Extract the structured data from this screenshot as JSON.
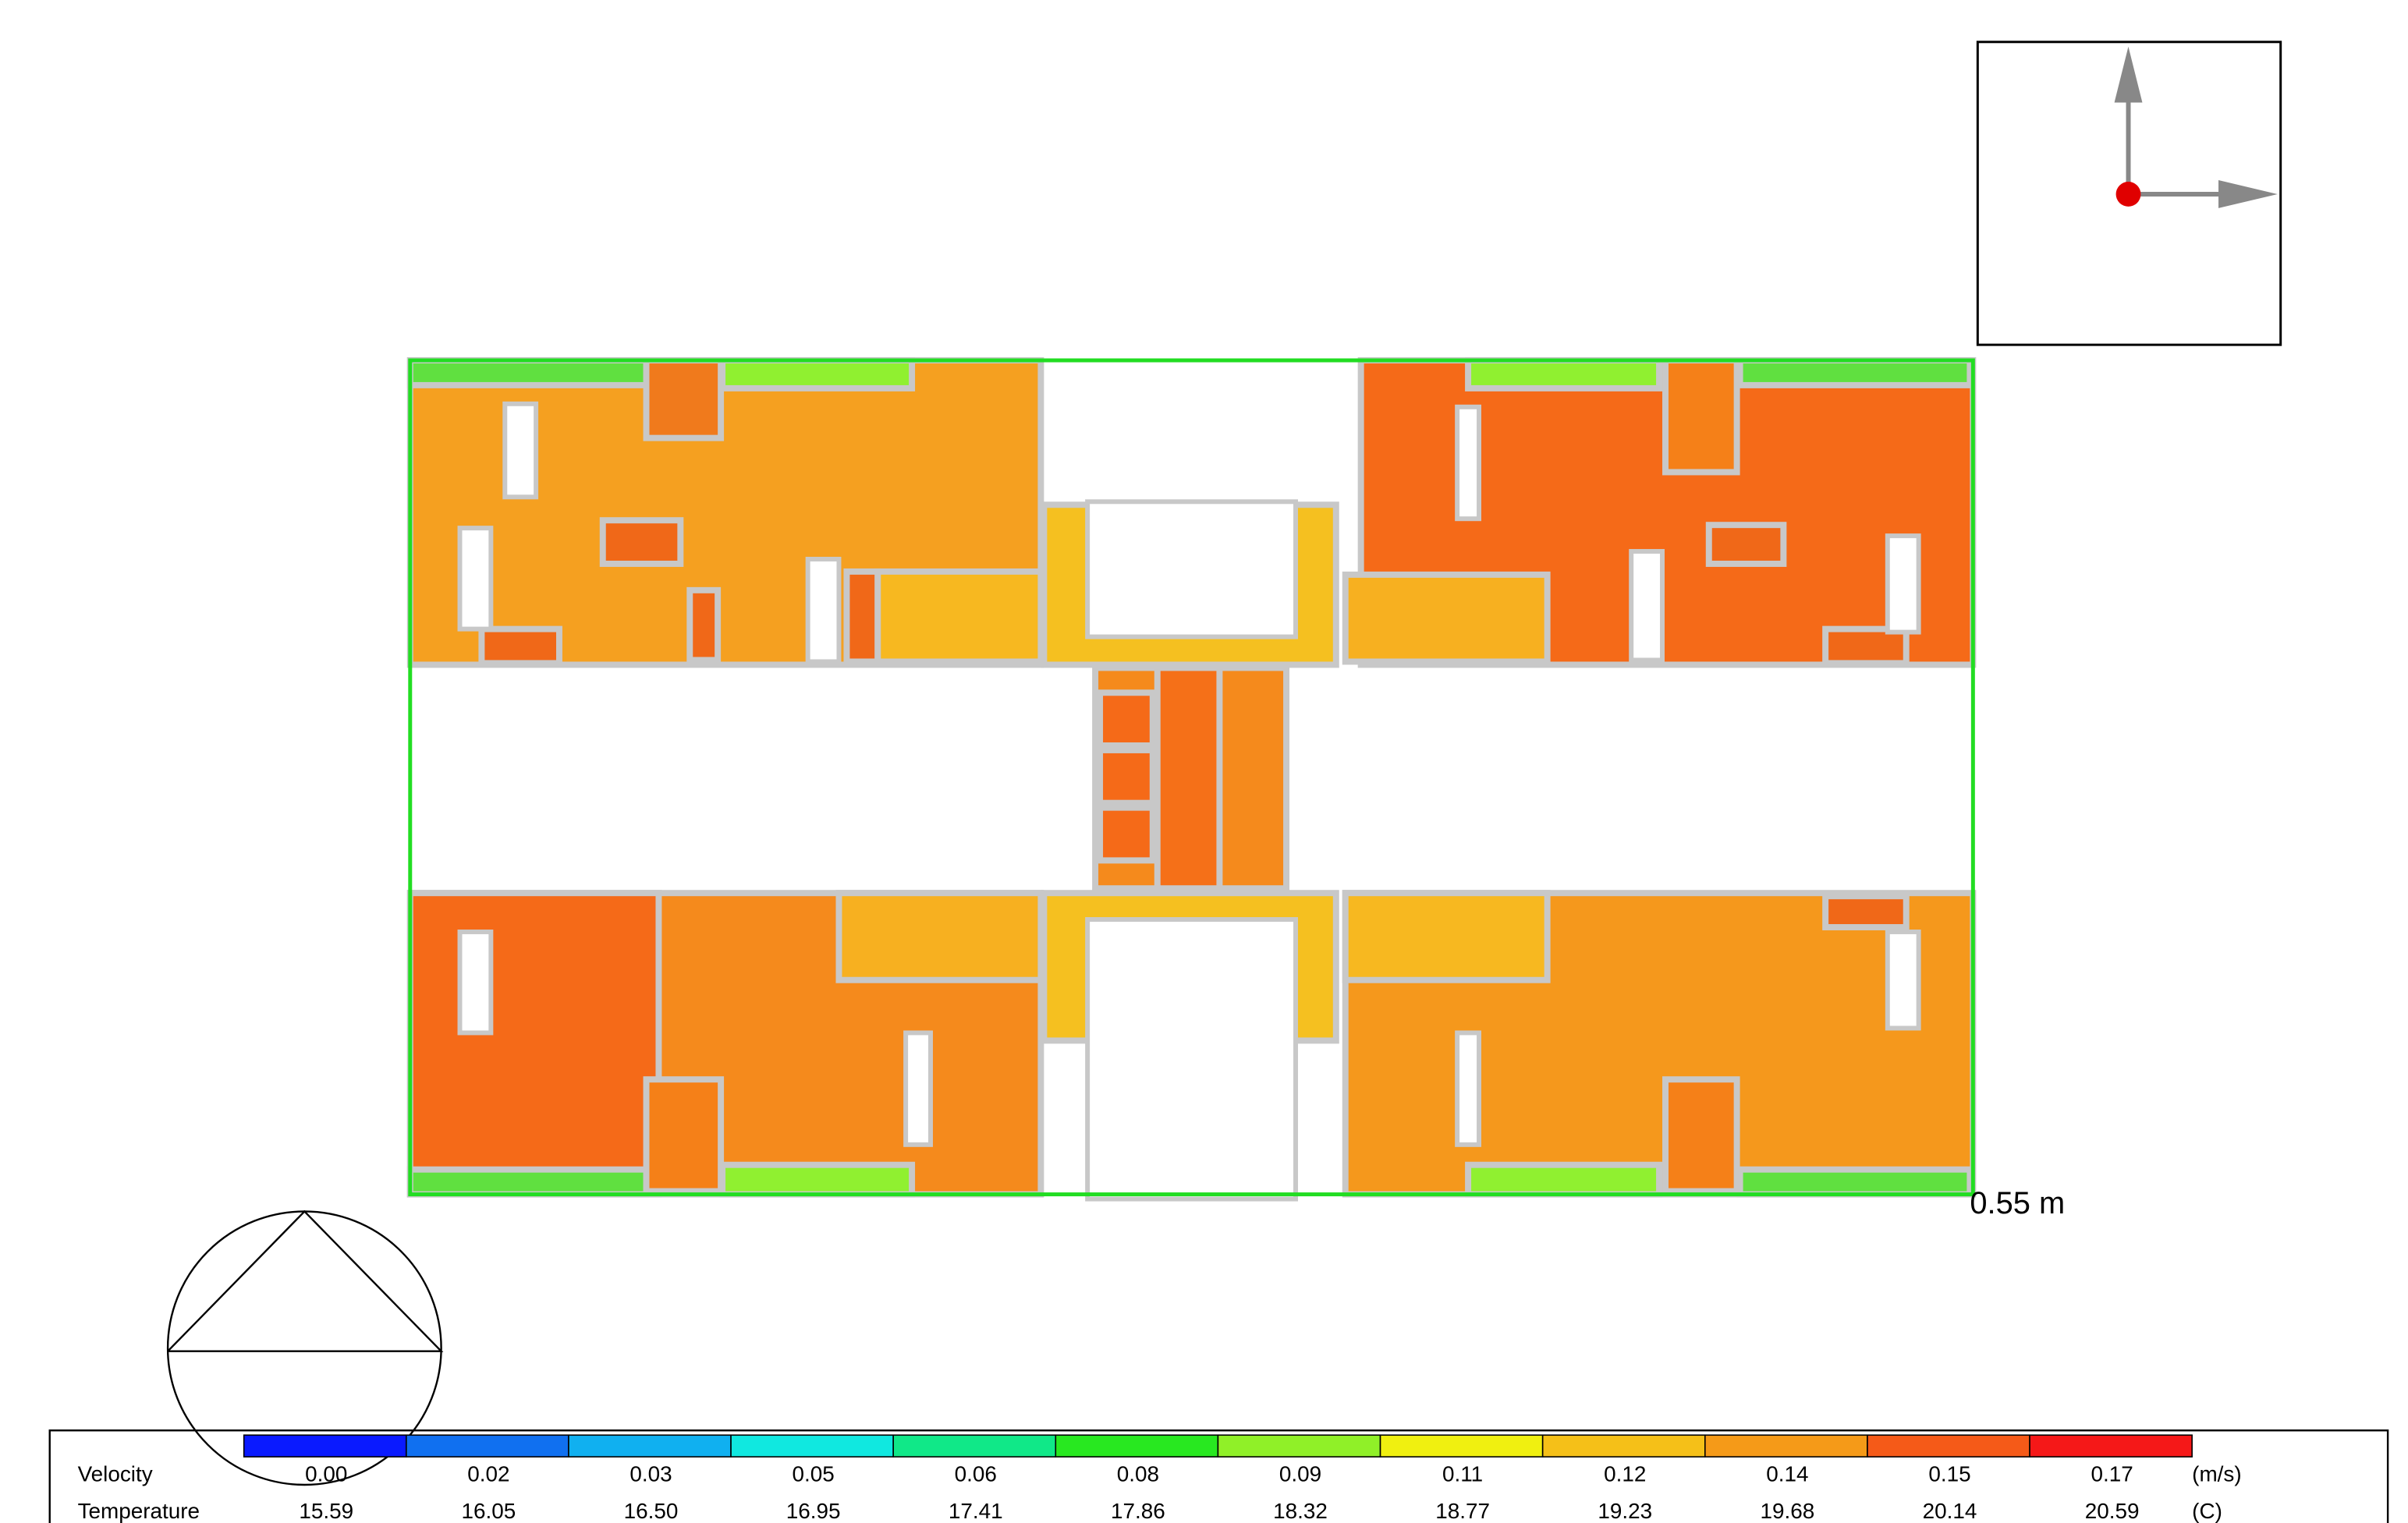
{
  "scale_label": "0.55 m",
  "legend": {
    "colors": [
      "#0a1aff",
      "#1070f0",
      "#10b0f0",
      "#10e8e0",
      "#10e888",
      "#28e820",
      "#90f028",
      "#f0f010",
      "#f5c018",
      "#f59a18",
      "#f55a18",
      "#f51818"
    ],
    "rows": [
      {
        "label": "Velocity",
        "values": [
          "0.00",
          "0.02",
          "0.03",
          "0.05",
          "0.06",
          "0.08",
          "0.09",
          "0.11",
          "0.12",
          "0.14",
          "0.15",
          "0.17"
        ],
        "unit": "(m/s)"
      },
      {
        "label": "Temperature",
        "values": [
          "15.59",
          "16.05",
          "16.50",
          "16.95",
          "17.41",
          "17.86",
          "18.32",
          "18.77",
          "19.23",
          "19.68",
          "20.14",
          "20.59"
        ],
        "unit": "(C)"
      }
    ]
  }
}
